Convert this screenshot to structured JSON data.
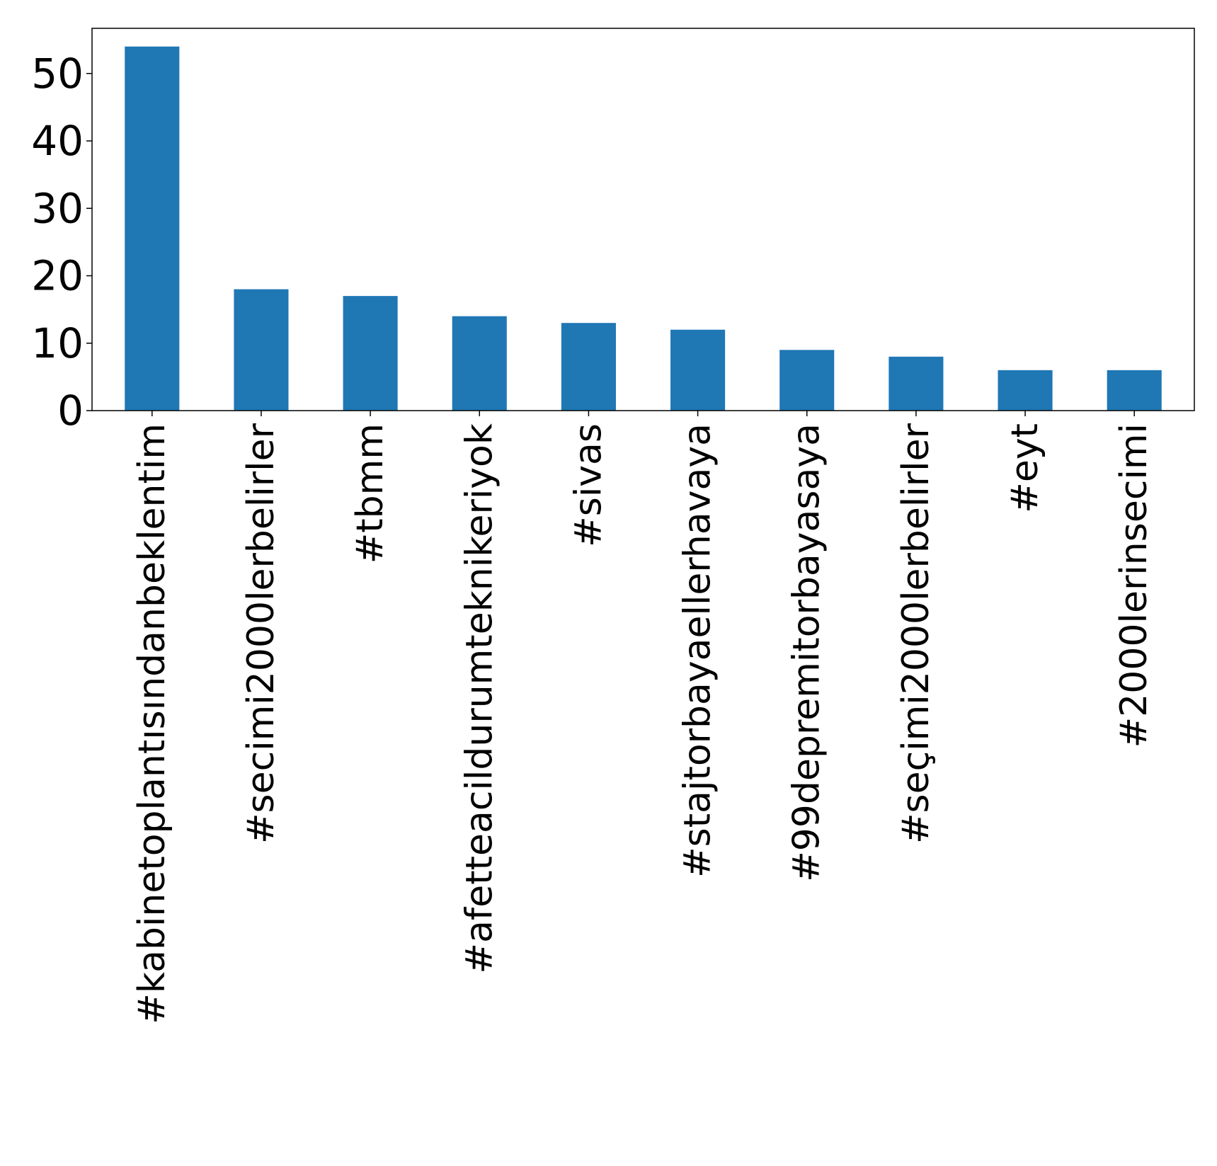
{
  "chart_data": {
    "type": "bar",
    "title": "",
    "xlabel": "",
    "ylabel": "",
    "categories": [
      "#kabinetoplantısındanbeklentim",
      "#secimi2000lerbelirler",
      "#tbmm",
      "#afetteacildurumteknikeriyok",
      "#sivas",
      "#stajtorbayaellerhavaya",
      "#99depremitorbayasaya",
      "#seçimi2000lerbelirler",
      "#eyt",
      "#2000lerinsecimi"
    ],
    "values": [
      54,
      18,
      17,
      14,
      13,
      12,
      9,
      8,
      6,
      6
    ],
    "ylim": [
      0,
      56.7
    ],
    "yticks": [
      0,
      10,
      20,
      30,
      40,
      50
    ],
    "grid": false,
    "legend": "none",
    "bar_color": "#1f77b4"
  }
}
